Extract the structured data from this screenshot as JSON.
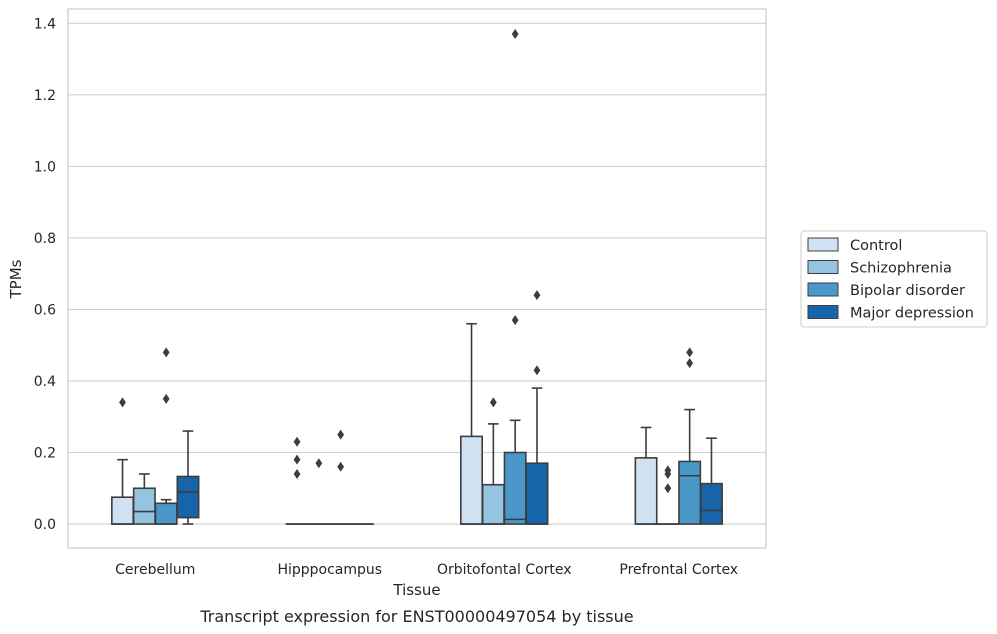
{
  "chart_data": {
    "type": "box",
    "title": "",
    "caption": "Transcript expression for ENST00000497054 by tissue",
    "xlabel": "Tissue",
    "ylabel": "TPMs",
    "ylim": [
      -0.067,
      1.44
    ],
    "yticks": [
      0.0,
      0.2,
      0.4,
      0.6,
      0.8,
      1.0,
      1.2,
      1.4
    ],
    "grid": "horizontal",
    "legend": "right",
    "categories": [
      "Cerebellum",
      "Hipppocampus",
      "Orbitofontal Cortex",
      "Prefrontal Cortex"
    ],
    "series": [
      {
        "name": "Control",
        "color": "#d0e1f2",
        "boxes": [
          {
            "q1": 0.0,
            "median": 0.0,
            "q3": 0.075,
            "whisker_low": 0.0,
            "whisker_high": 0.18,
            "outliers": [
              0.34
            ]
          },
          {
            "q1": 0.0,
            "median": 0.0,
            "q3": 0.0,
            "whisker_low": 0.0,
            "whisker_high": 0.0,
            "outliers": [
              0.14,
              0.18,
              0.23
            ]
          },
          {
            "q1": 0.0,
            "median": 0.0,
            "q3": 0.245,
            "whisker_low": 0.0,
            "whisker_high": 0.56,
            "outliers": []
          },
          {
            "q1": 0.0,
            "median": 0.0,
            "q3": 0.185,
            "whisker_low": 0.0,
            "whisker_high": 0.27,
            "outliers": []
          }
        ]
      },
      {
        "name": "Schizophrenia",
        "color": "#94c4df",
        "boxes": [
          {
            "q1": 0.0,
            "median": 0.035,
            "q3": 0.1,
            "whisker_low": 0.0,
            "whisker_high": 0.14,
            "outliers": []
          },
          {
            "q1": 0.0,
            "median": 0.0,
            "q3": 0.0,
            "whisker_low": 0.0,
            "whisker_high": 0.0,
            "outliers": [
              0.17
            ]
          },
          {
            "q1": 0.0,
            "median": 0.0,
            "q3": 0.11,
            "whisker_low": 0.0,
            "whisker_high": 0.28,
            "outliers": [
              0.34
            ]
          },
          {
            "q1": 0.0,
            "median": 0.0,
            "q3": 0.0,
            "whisker_low": 0.0,
            "whisker_high": 0.0,
            "outliers": [
              0.1,
              0.14,
              0.15
            ]
          }
        ]
      },
      {
        "name": "Bipolar disorder",
        "color": "#4a98c9",
        "boxes": [
          {
            "q1": 0.0,
            "median": 0.0,
            "q3": 0.058,
            "whisker_low": 0.0,
            "whisker_high": 0.068,
            "outliers": [
              0.35,
              0.48
            ]
          },
          {
            "q1": 0.0,
            "median": 0.0,
            "q3": 0.0,
            "whisker_low": 0.0,
            "whisker_high": 0.0,
            "outliers": [
              0.16,
              0.25
            ]
          },
          {
            "q1": 0.0,
            "median": 0.013,
            "q3": 0.2,
            "whisker_low": 0.0,
            "whisker_high": 0.29,
            "outliers": [
              0.57,
              1.37
            ]
          },
          {
            "q1": 0.0,
            "median": 0.135,
            "q3": 0.175,
            "whisker_low": 0.0,
            "whisker_high": 0.32,
            "outliers": [
              0.45,
              0.48
            ]
          }
        ]
      },
      {
        "name": "Major depression",
        "color": "#1764ab",
        "boxes": [
          {
            "q1": 0.018,
            "median": 0.09,
            "q3": 0.133,
            "whisker_low": 0.0,
            "whisker_high": 0.26,
            "outliers": []
          },
          {
            "q1": 0.0,
            "median": 0.0,
            "q3": 0.0,
            "whisker_low": 0.0,
            "whisker_high": 0.0,
            "outliers": []
          },
          {
            "q1": 0.0,
            "median": 0.0,
            "q3": 0.17,
            "whisker_low": 0.0,
            "whisker_high": 0.38,
            "outliers": [
              0.43,
              0.64
            ]
          },
          {
            "q1": 0.0,
            "median": 0.038,
            "q3": 0.113,
            "whisker_low": 0.0,
            "whisker_high": 0.24,
            "outliers": []
          }
        ]
      }
    ]
  }
}
